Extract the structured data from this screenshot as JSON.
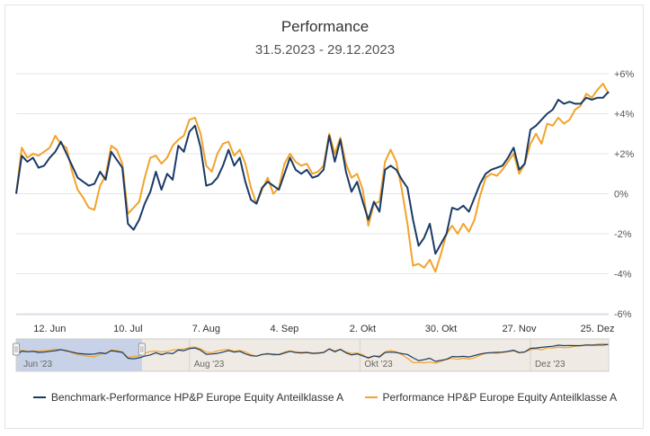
{
  "chart_data": {
    "type": "line",
    "title": "Performance",
    "subtitle": "31.5.2023 - 29.12.2023",
    "x_start": "2023-05-31",
    "x_end": "2023-12-29",
    "x_ticks": [
      {
        "date": "2023-06-12",
        "label": "12. Jun"
      },
      {
        "date": "2023-07-10",
        "label": "10. Jul"
      },
      {
        "date": "2023-08-07",
        "label": "7. Aug"
      },
      {
        "date": "2023-09-04",
        "label": "4. Sep"
      },
      {
        "date": "2023-10-02",
        "label": "2. Okt"
      },
      {
        "date": "2023-10-30",
        "label": "30. Okt"
      },
      {
        "date": "2023-11-27",
        "label": "27. Nov"
      },
      {
        "date": "2023-12-25",
        "label": "25. Dez"
      }
    ],
    "y_ticks": [
      {
        "value": 6,
        "label": "+6%"
      },
      {
        "value": 4,
        "label": "+4%"
      },
      {
        "value": 2,
        "label": "+2%"
      },
      {
        "value": 0,
        "label": "0%"
      },
      {
        "value": -2,
        "label": "-2%"
      },
      {
        "value": -4,
        "label": "-4%"
      },
      {
        "value": -6,
        "label": "-6%"
      }
    ],
    "ylim": [
      -6,
      6
    ],
    "ylabel_position": "right",
    "grid": true,
    "navigator": {
      "labels": [
        {
          "date": "2023-06-01",
          "label": "Jun '23"
        },
        {
          "date": "2023-08-01",
          "label": "Aug '23"
        },
        {
          "date": "2023-10-01",
          "label": "Okt '23"
        },
        {
          "date": "2023-12-01",
          "label": "Dez '23"
        }
      ],
      "selection_start": "2023-05-31",
      "selection_end": "2023-07-15"
    },
    "series": [
      {
        "name": "Benchmark-Performance HP&P Europe Equity Anteilklasse A",
        "color": "#1a3a66",
        "points": [
          [
            "2023-05-31",
            0.0
          ],
          [
            "2023-06-02",
            1.9
          ],
          [
            "2023-06-04",
            1.6
          ],
          [
            "2023-06-06",
            1.8
          ],
          [
            "2023-06-08",
            1.3
          ],
          [
            "2023-06-10",
            1.4
          ],
          [
            "2023-06-12",
            1.8
          ],
          [
            "2023-06-14",
            2.1
          ],
          [
            "2023-06-16",
            2.6
          ],
          [
            "2023-06-18",
            2.0
          ],
          [
            "2023-06-20",
            1.4
          ],
          [
            "2023-06-22",
            0.8
          ],
          [
            "2023-06-24",
            0.6
          ],
          [
            "2023-06-26",
            0.4
          ],
          [
            "2023-06-28",
            0.5
          ],
          [
            "2023-06-30",
            1.1
          ],
          [
            "2023-07-02",
            0.7
          ],
          [
            "2023-07-04",
            2.1
          ],
          [
            "2023-07-06",
            1.7
          ],
          [
            "2023-07-08",
            1.3
          ],
          [
            "2023-07-10",
            -1.5
          ],
          [
            "2023-07-12",
            -1.8
          ],
          [
            "2023-07-14",
            -1.3
          ],
          [
            "2023-07-16",
            -0.5
          ],
          [
            "2023-07-18",
            0.1
          ],
          [
            "2023-07-20",
            1.1
          ],
          [
            "2023-07-22",
            0.2
          ],
          [
            "2023-07-24",
            1.0
          ],
          [
            "2023-07-26",
            0.7
          ],
          [
            "2023-07-28",
            2.4
          ],
          [
            "2023-07-30",
            2.1
          ],
          [
            "2023-08-01",
            3.1
          ],
          [
            "2023-08-03",
            3.4
          ],
          [
            "2023-08-05",
            2.3
          ],
          [
            "2023-08-07",
            0.4
          ],
          [
            "2023-08-09",
            0.5
          ],
          [
            "2023-08-11",
            0.8
          ],
          [
            "2023-08-13",
            1.4
          ],
          [
            "2023-08-15",
            2.2
          ],
          [
            "2023-08-17",
            1.4
          ],
          [
            "2023-08-19",
            1.8
          ],
          [
            "2023-08-21",
            0.6
          ],
          [
            "2023-08-23",
            -0.3
          ],
          [
            "2023-08-25",
            -0.5
          ],
          [
            "2023-08-27",
            0.3
          ],
          [
            "2023-08-29",
            0.6
          ],
          [
            "2023-08-31",
            0.4
          ],
          [
            "2023-09-02",
            0.2
          ],
          [
            "2023-09-04",
            1.0
          ],
          [
            "2023-09-06",
            1.8
          ],
          [
            "2023-09-08",
            1.2
          ],
          [
            "2023-09-10",
            1.0
          ],
          [
            "2023-09-12",
            1.2
          ],
          [
            "2023-09-14",
            0.8
          ],
          [
            "2023-09-16",
            0.9
          ],
          [
            "2023-09-18",
            1.2
          ],
          [
            "2023-09-20",
            2.9
          ],
          [
            "2023-09-22",
            1.6
          ],
          [
            "2023-09-24",
            2.7
          ],
          [
            "2023-09-26",
            1.1
          ],
          [
            "2023-09-28",
            0.1
          ],
          [
            "2023-09-30",
            0.6
          ],
          [
            "2023-10-02",
            -0.4
          ],
          [
            "2023-10-04",
            -1.3
          ],
          [
            "2023-10-06",
            -0.4
          ],
          [
            "2023-10-08",
            -0.9
          ],
          [
            "2023-10-10",
            1.2
          ],
          [
            "2023-10-12",
            1.4
          ],
          [
            "2023-10-14",
            1.2
          ],
          [
            "2023-10-16",
            0.7
          ],
          [
            "2023-10-18",
            0.3
          ],
          [
            "2023-10-20",
            -1.3
          ],
          [
            "2023-10-22",
            -2.6
          ],
          [
            "2023-10-24",
            -2.2
          ],
          [
            "2023-10-26",
            -1.5
          ],
          [
            "2023-10-28",
            -3.0
          ],
          [
            "2023-10-30",
            -2.5
          ],
          [
            "2023-11-01",
            -2.0
          ],
          [
            "2023-11-03",
            -0.7
          ],
          [
            "2023-11-05",
            -0.8
          ],
          [
            "2023-11-07",
            -0.6
          ],
          [
            "2023-11-09",
            -0.9
          ],
          [
            "2023-11-11",
            -0.2
          ],
          [
            "2023-11-13",
            0.5
          ],
          [
            "2023-11-15",
            1.0
          ],
          [
            "2023-11-17",
            1.2
          ],
          [
            "2023-11-19",
            1.3
          ],
          [
            "2023-11-21",
            1.4
          ],
          [
            "2023-11-23",
            1.8
          ],
          [
            "2023-11-25",
            2.3
          ],
          [
            "2023-11-27",
            1.2
          ],
          [
            "2023-11-29",
            1.5
          ],
          [
            "2023-12-01",
            3.2
          ],
          [
            "2023-12-03",
            3.4
          ],
          [
            "2023-12-05",
            3.7
          ],
          [
            "2023-12-07",
            4.0
          ],
          [
            "2023-12-09",
            4.2
          ],
          [
            "2023-12-11",
            4.7
          ],
          [
            "2023-12-13",
            4.5
          ],
          [
            "2023-12-15",
            4.6
          ],
          [
            "2023-12-17",
            4.5
          ],
          [
            "2023-12-19",
            4.5
          ],
          [
            "2023-12-21",
            4.8
          ],
          [
            "2023-12-23",
            4.7
          ],
          [
            "2023-12-25",
            4.8
          ],
          [
            "2023-12-27",
            4.8
          ],
          [
            "2023-12-29",
            5.1
          ]
        ]
      },
      {
        "name": "Performance HP&P Europe Equity Anteilklasse A",
        "color": "#f2a32b",
        "points": [
          [
            "2023-05-31",
            0.0
          ],
          [
            "2023-06-02",
            2.3
          ],
          [
            "2023-06-04",
            1.8
          ],
          [
            "2023-06-06",
            2.0
          ],
          [
            "2023-06-08",
            1.9
          ],
          [
            "2023-06-10",
            2.1
          ],
          [
            "2023-06-12",
            2.3
          ],
          [
            "2023-06-14",
            2.9
          ],
          [
            "2023-06-16",
            2.5
          ],
          [
            "2023-06-18",
            2.3
          ],
          [
            "2023-06-20",
            1.1
          ],
          [
            "2023-06-22",
            0.2
          ],
          [
            "2023-06-24",
            -0.2
          ],
          [
            "2023-06-26",
            -0.7
          ],
          [
            "2023-06-28",
            -0.8
          ],
          [
            "2023-06-30",
            0.4
          ],
          [
            "2023-07-02",
            0.9
          ],
          [
            "2023-07-04",
            2.4
          ],
          [
            "2023-07-06",
            2.2
          ],
          [
            "2023-07-08",
            1.5
          ],
          [
            "2023-07-10",
            -1.0
          ],
          [
            "2023-07-12",
            -0.7
          ],
          [
            "2023-07-14",
            -0.4
          ],
          [
            "2023-07-16",
            0.8
          ],
          [
            "2023-07-18",
            1.8
          ],
          [
            "2023-07-20",
            1.9
          ],
          [
            "2023-07-22",
            1.5
          ],
          [
            "2023-07-24",
            1.8
          ],
          [
            "2023-07-26",
            2.4
          ],
          [
            "2023-07-28",
            2.7
          ],
          [
            "2023-07-30",
            2.9
          ],
          [
            "2023-08-01",
            3.7
          ],
          [
            "2023-08-03",
            3.8
          ],
          [
            "2023-08-05",
            3.0
          ],
          [
            "2023-08-07",
            1.4
          ],
          [
            "2023-08-09",
            1.1
          ],
          [
            "2023-08-11",
            2.0
          ],
          [
            "2023-08-13",
            2.5
          ],
          [
            "2023-08-15",
            2.6
          ],
          [
            "2023-08-17",
            1.9
          ],
          [
            "2023-08-19",
            2.2
          ],
          [
            "2023-08-21",
            1.5
          ],
          [
            "2023-08-23",
            0.3
          ],
          [
            "2023-08-25",
            -0.5
          ],
          [
            "2023-08-27",
            0.2
          ],
          [
            "2023-08-29",
            0.8
          ],
          [
            "2023-08-31",
            0.0
          ],
          [
            "2023-09-02",
            0.3
          ],
          [
            "2023-09-04",
            1.5
          ],
          [
            "2023-09-06",
            2.0
          ],
          [
            "2023-09-08",
            1.6
          ],
          [
            "2023-09-10",
            1.4
          ],
          [
            "2023-09-12",
            1.5
          ],
          [
            "2023-09-14",
            1.0
          ],
          [
            "2023-09-16",
            1.1
          ],
          [
            "2023-09-18",
            1.4
          ],
          [
            "2023-09-20",
            3.0
          ],
          [
            "2023-09-22",
            2.0
          ],
          [
            "2023-09-24",
            2.8
          ],
          [
            "2023-09-26",
            1.5
          ],
          [
            "2023-09-28",
            0.8
          ],
          [
            "2023-09-30",
            1.0
          ],
          [
            "2023-10-02",
            0.2
          ],
          [
            "2023-10-04",
            -1.6
          ],
          [
            "2023-10-06",
            -0.5
          ],
          [
            "2023-10-08",
            -0.4
          ],
          [
            "2023-10-10",
            1.6
          ],
          [
            "2023-10-12",
            2.2
          ],
          [
            "2023-10-14",
            1.6
          ],
          [
            "2023-10-16",
            0.2
          ],
          [
            "2023-10-18",
            -1.5
          ],
          [
            "2023-10-20",
            -3.6
          ],
          [
            "2023-10-22",
            -3.5
          ],
          [
            "2023-10-24",
            -3.7
          ],
          [
            "2023-10-26",
            -3.3
          ],
          [
            "2023-10-28",
            -3.9
          ],
          [
            "2023-10-30",
            -3.0
          ],
          [
            "2023-11-01",
            -2.0
          ],
          [
            "2023-11-03",
            -1.6
          ],
          [
            "2023-11-05",
            -2.0
          ],
          [
            "2023-11-07",
            -1.5
          ],
          [
            "2023-11-09",
            -1.9
          ],
          [
            "2023-11-11",
            -1.3
          ],
          [
            "2023-11-13",
            -0.1
          ],
          [
            "2023-11-15",
            0.8
          ],
          [
            "2023-11-17",
            1.0
          ],
          [
            "2023-11-19",
            0.9
          ],
          [
            "2023-11-21",
            1.2
          ],
          [
            "2023-11-23",
            1.6
          ],
          [
            "2023-11-25",
            2.0
          ],
          [
            "2023-11-27",
            1.0
          ],
          [
            "2023-11-29",
            1.5
          ],
          [
            "2023-12-01",
            2.5
          ],
          [
            "2023-12-03",
            3.0
          ],
          [
            "2023-12-05",
            2.5
          ],
          [
            "2023-12-07",
            3.5
          ],
          [
            "2023-12-09",
            3.4
          ],
          [
            "2023-12-11",
            3.8
          ],
          [
            "2023-12-13",
            3.5
          ],
          [
            "2023-12-15",
            3.7
          ],
          [
            "2023-12-17",
            4.2
          ],
          [
            "2023-12-19",
            4.4
          ],
          [
            "2023-12-21",
            5.0
          ],
          [
            "2023-12-23",
            4.8
          ],
          [
            "2023-12-25",
            5.2
          ],
          [
            "2023-12-27",
            5.5
          ],
          [
            "2023-12-29",
            5.0
          ]
        ]
      }
    ]
  }
}
